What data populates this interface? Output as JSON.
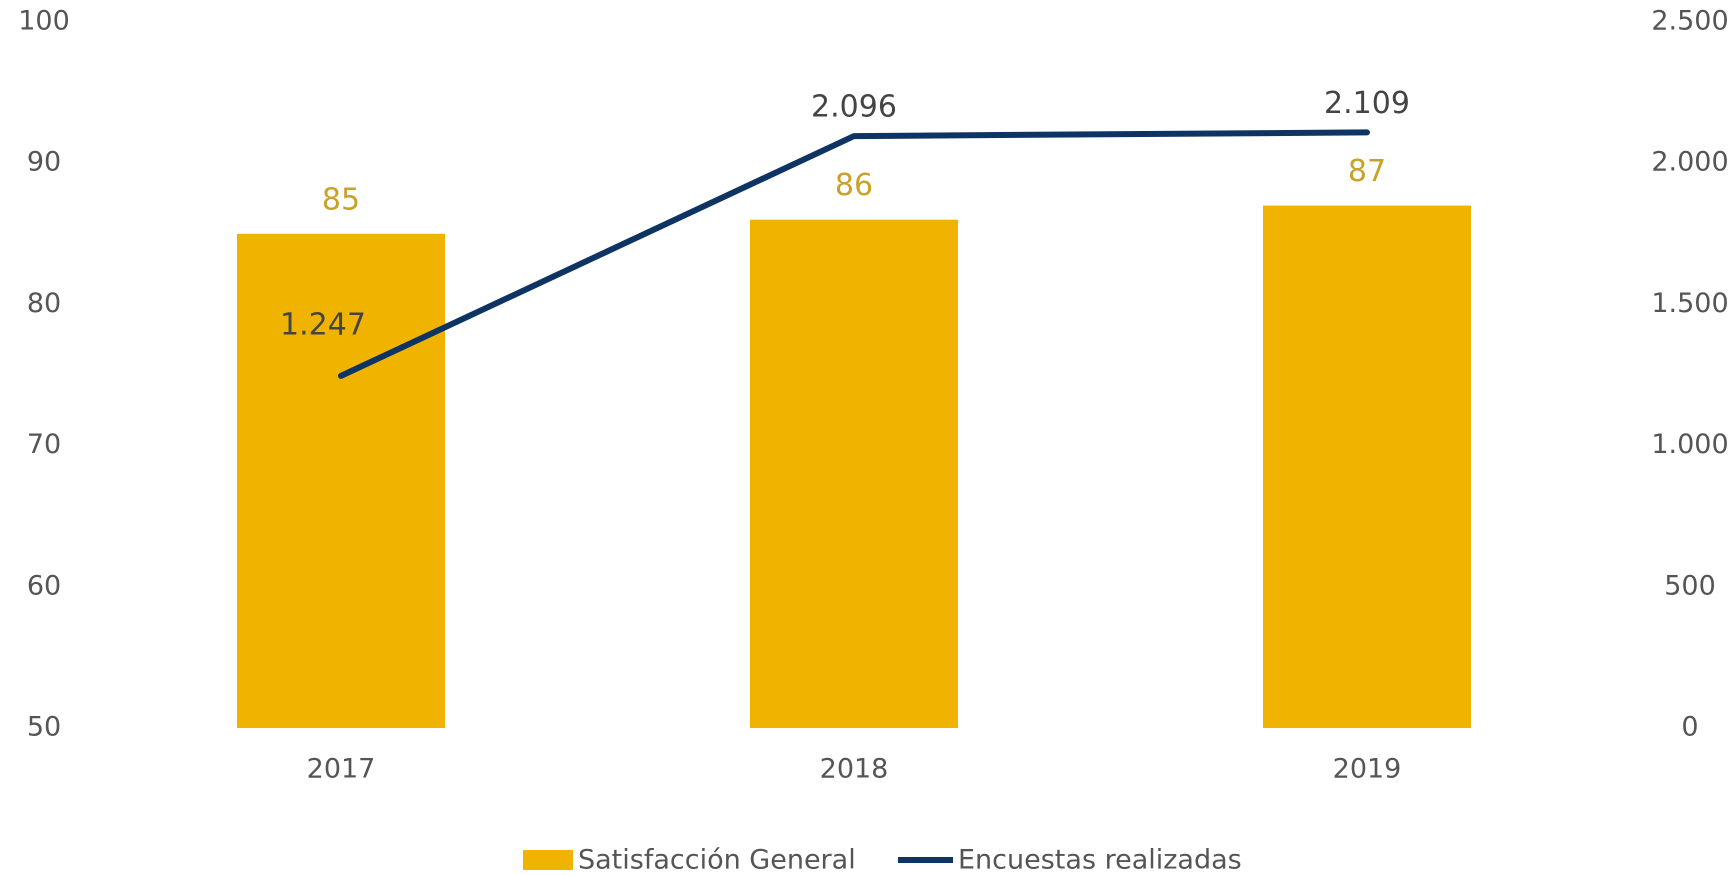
{
  "chart_data": {
    "type": "bar_line",
    "categories": [
      "2017",
      "2018",
      "2019"
    ],
    "series": [
      {
        "name": "Satisfacción General",
        "color": "#f0b400",
        "values": [
          85,
          86,
          87
        ]
      },
      {
        "name": "Encuestas realizadas",
        "color": "#0e3463",
        "axis": "y2",
        "values": [
          1247,
          2096,
          2109
        ],
        "value_labels": [
          "1.247",
          "2.096",
          "2.109"
        ]
      }
    ],
    "ylim": [
      50,
      100
    ],
    "yticks": [
      50,
      60,
      70,
      80,
      90,
      100
    ],
    "y2lim": [
      0,
      2500
    ],
    "y2ticks": [
      0,
      500,
      {
        "value": 1000,
        "label": "1.000"
      },
      {
        "value": 1500,
        "label": "1.500"
      },
      {
        "value": 2000,
        "label": "2.000"
      },
      {
        "value": 2500,
        "label": "2.500"
      }
    ],
    "legend": "bottom"
  }
}
